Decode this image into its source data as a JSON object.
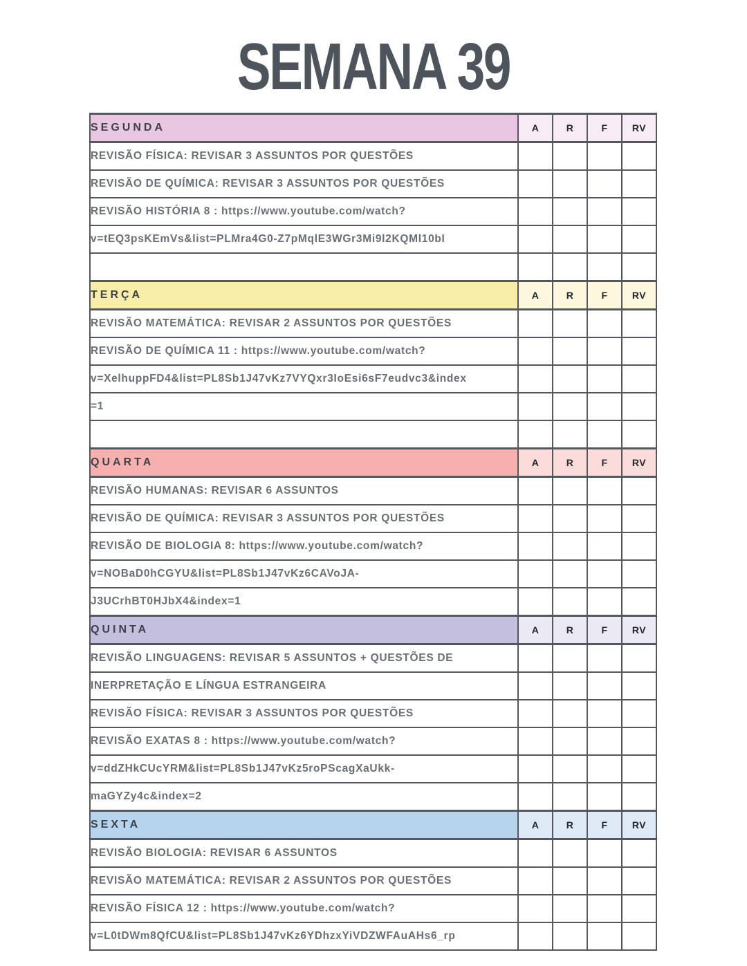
{
  "page": {
    "title": "SEMANA 39"
  },
  "table": {
    "check_columns": [
      "A",
      "R",
      "F",
      "RV"
    ],
    "border_color": "#54585e",
    "text_color": "#686f75",
    "sections": [
      {
        "day": "SEGUNDA",
        "header_color": "#e9c7e1",
        "check_header_color": "#f8ecf4",
        "rows": [
          "REVISÃO FÍSICA: REVISAR 3 ASSUNTOS POR QUESTÕES",
          "REVISÃO DE QUÍMICA: REVISAR 3 ASSUNTOS POR QUESTÕES",
          "REVISÃO HISTÓRIA 8 : https://www.youtube.com/watch?",
          "v=tEQ3psKEmVs&list=PLMra4G0-Z7pMqlE3WGr3Mi9l2KQMl10bI",
          ""
        ]
      },
      {
        "day": "TERÇA",
        "header_color": "#f8eda9",
        "check_header_color": "#fdf8dd",
        "rows": [
          "REVISÃO MATEMÁTICA: REVISAR 2 ASSUNTOS POR QUESTÕES",
          "REVISÃO DE QUÍMICA 11 : https://www.youtube.com/watch?",
          "v=XelhuppFD4&list=PL8Sb1J47vKz7VYQxr3IoEsi6sF7eudvc3&index",
          "=1",
          ""
        ]
      },
      {
        "day": "QUARTA",
        "header_color": "#f8b0ae",
        "check_header_color": "#fcdcda",
        "rows": [
          "REVISÃO HUMANAS: REVISAR 6 ASSUNTOS",
          "REVISÃO DE QUÍMICA: REVISAR 3 ASSUNTOS POR QUESTÕES",
          "REVISÃO DE BIOLOGIA 8: https://www.youtube.com/watch?",
          "v=NOBaD0hCGYU&list=PL8Sb1J47vKz6CAVoJA-",
          "J3UCrhBT0HJbX4&index=1"
        ]
      },
      {
        "day": "QUINTA",
        "header_color": "#c4bedf",
        "check_header_color": "#ebe9f4",
        "rows": [
          "REVISÃO LINGUAGENS: REVISAR 5 ASSUNTOS + QUESTÕES DE",
          "INERPRETAÇÃO E LÍNGUA ESTRANGEIRA",
          "REVISÃO FÍSICA: REVISAR 3 ASSUNTOS POR QUESTÕES",
          "REVISÃO EXATAS 8 : https://www.youtube.com/watch?",
          "v=ddZHkCUcYRM&list=PL8Sb1J47vKz5roPScagXaUkk-",
          "maGYZy4c&index=2"
        ]
      },
      {
        "day": "SEXTA",
        "header_color": "#b6d4ec",
        "check_header_color": "#ddeaf6",
        "rows": [
          "REVISÃO BIOLOGIA: REVISAR 6 ASSUNTOS",
          "REVISÃO MATEMÁTICA: REVISAR 2 ASSUNTOS POR QUESTÕES",
          "REVISÃO FÍSICA 12 : https://www.youtube.com/watch?",
          "v=L0tDWm8QfCU&list=PL8Sb1J47vKz6YDhzxYiVDZWFAuAHs6_rp"
        ]
      }
    ]
  }
}
